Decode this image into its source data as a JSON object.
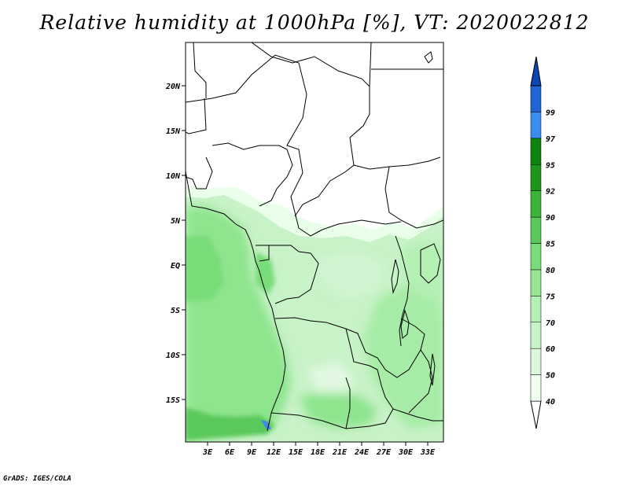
{
  "title": "Relative humidity at 1000hPa [%], VT: 2020022812",
  "credit": "GrADS: IGES/COLA",
  "map": {
    "lat_labels": [
      "20N",
      "15N",
      "10N",
      "5N",
      "EQ",
      "5S",
      "10S",
      "15S"
    ],
    "lon_labels": [
      "3E",
      "6E",
      "9E",
      "12E",
      "15E",
      "18E",
      "21E",
      "24E",
      "27E",
      "30E",
      "33E"
    ],
    "lat_range": [
      -19.5,
      24.5
    ],
    "lon_range": [
      0,
      35
    ]
  },
  "colorbar": {
    "labels": [
      "40",
      "50",
      "60",
      "70",
      "75",
      "80",
      "85",
      "90",
      "92",
      "95",
      "97",
      "99"
    ],
    "colors": [
      "#f0fff0",
      "#dcf7dc",
      "#c8f2c8",
      "#b4f0b4",
      "#96e696",
      "#78dc78",
      "#5ac85a",
      "#3cb43c",
      "#1e961e",
      "#0f820f",
      "#3c8cf0",
      "#1e64d2",
      "#0a46b4"
    ]
  }
}
